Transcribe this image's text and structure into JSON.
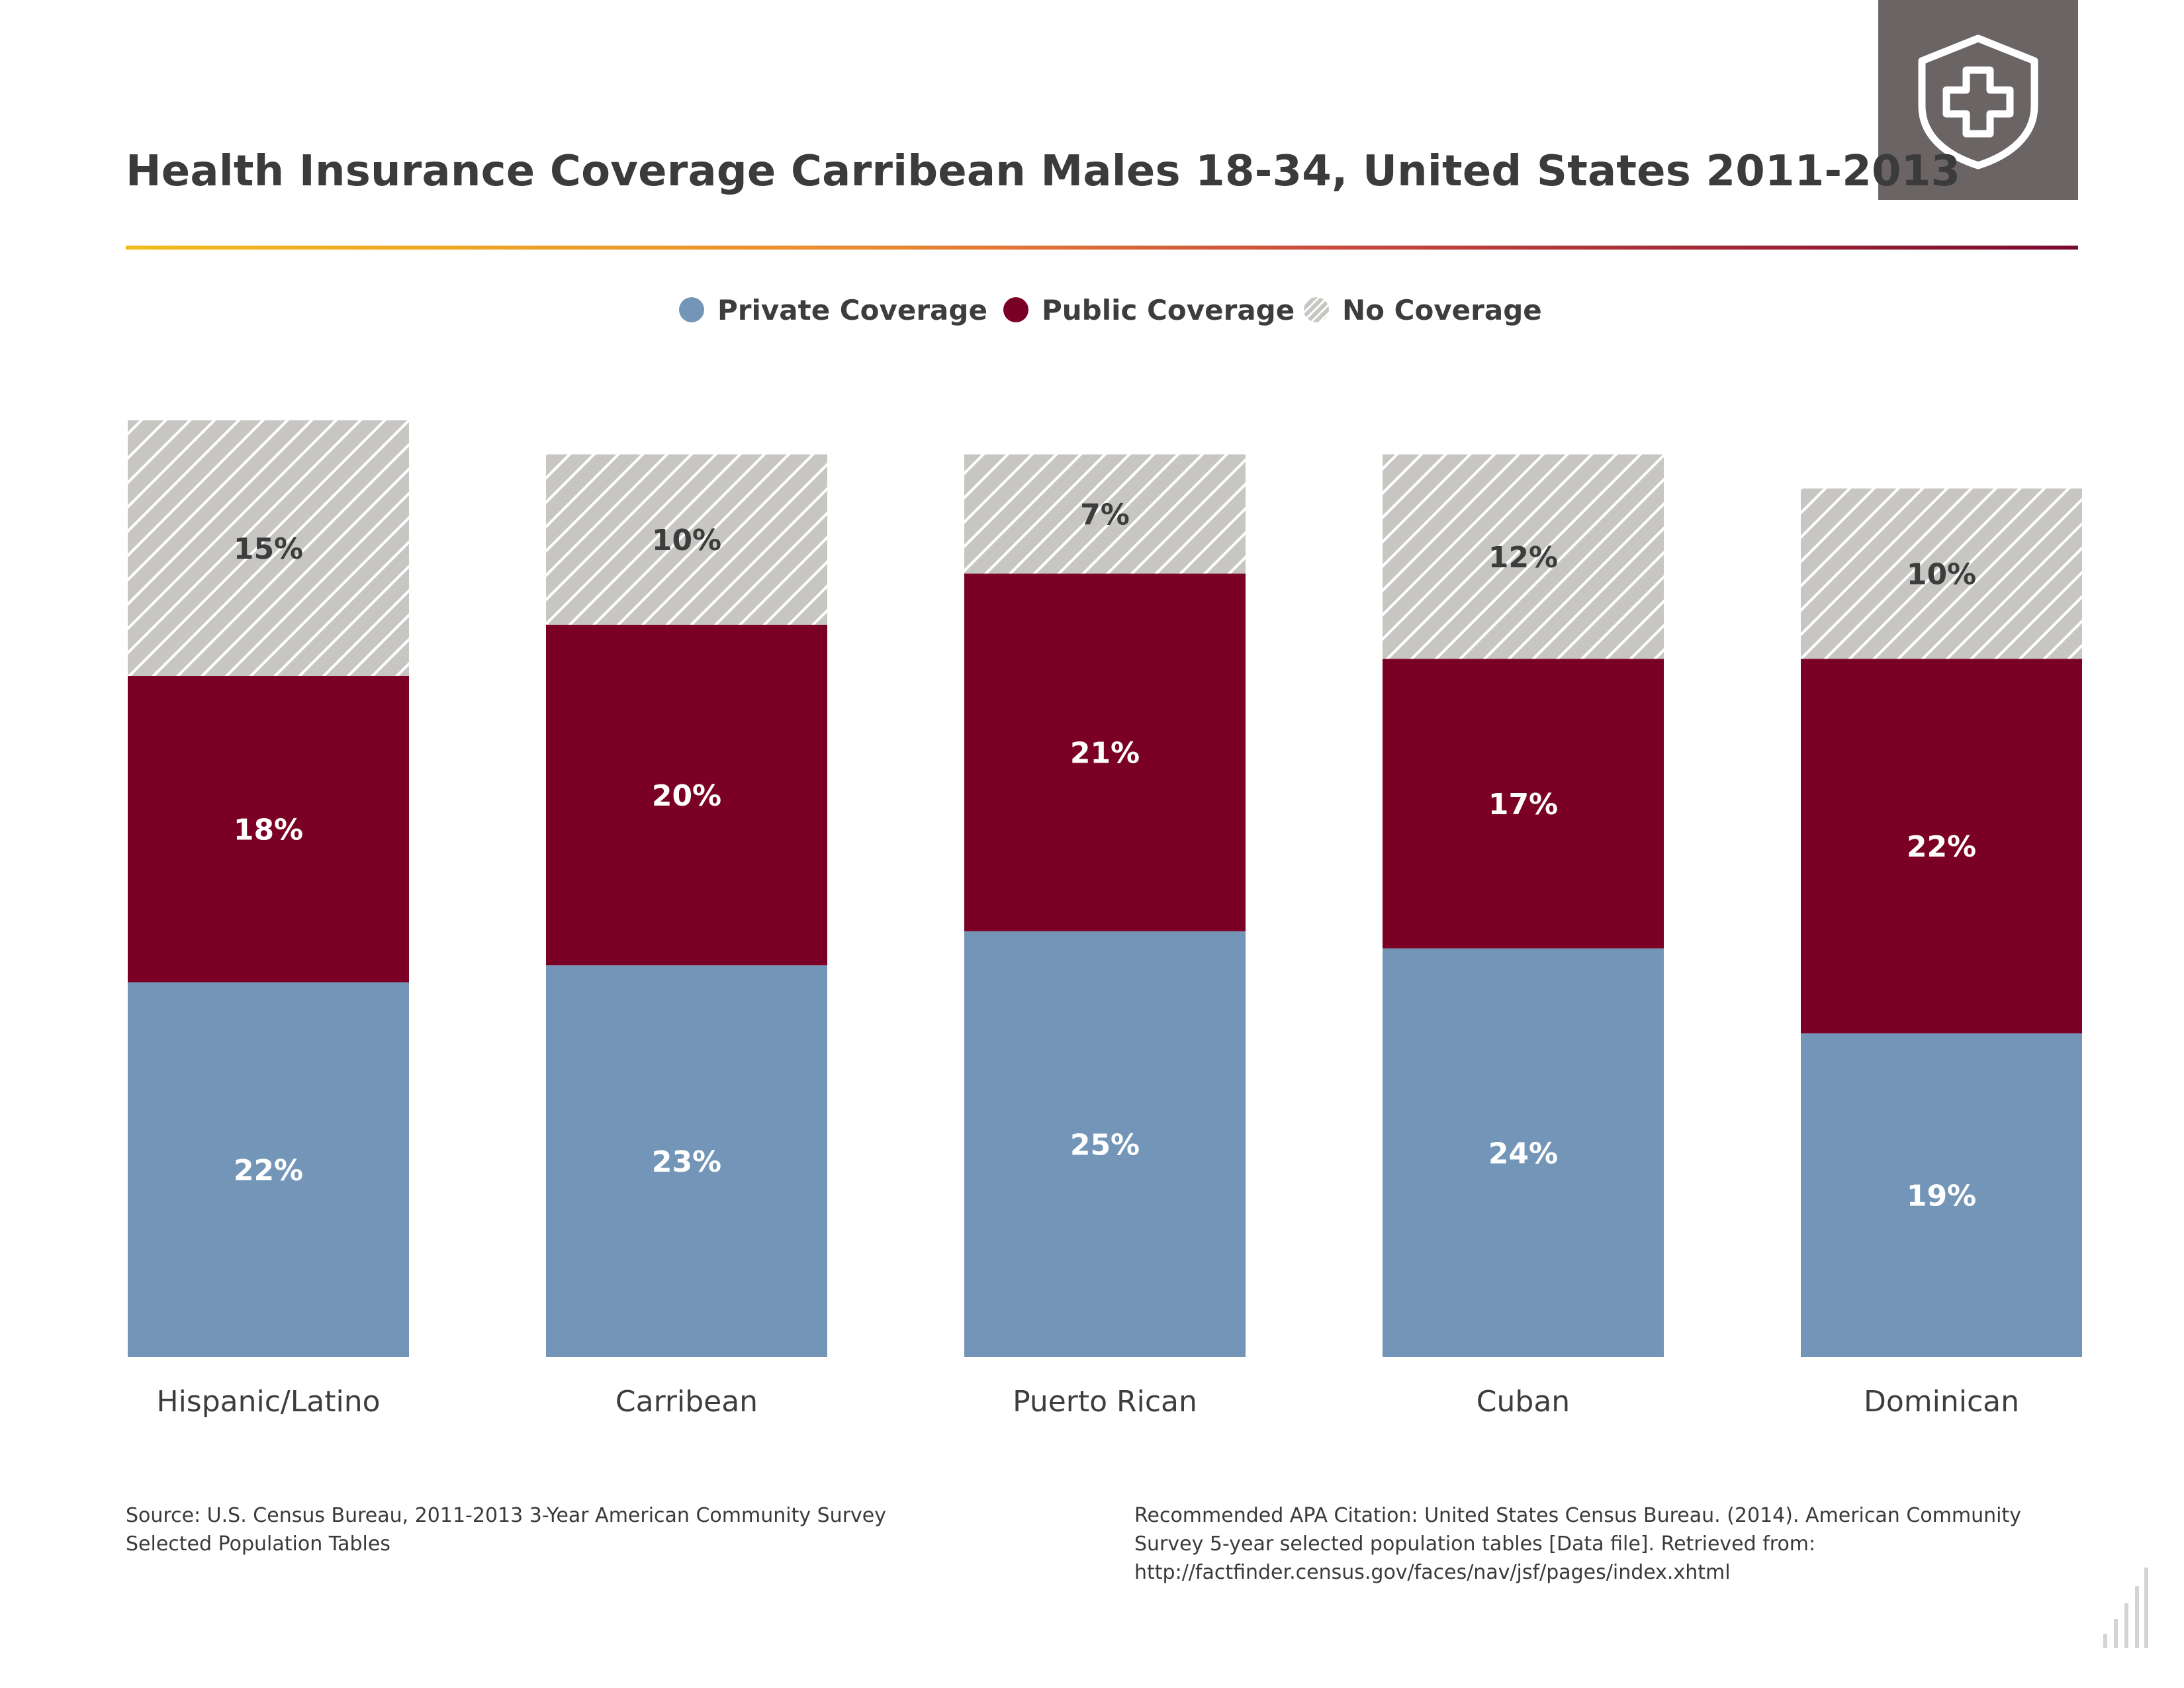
{
  "header": {
    "title": "Health Insurance Coverage Carribean Males 18-34, United States 2011-2013",
    "badge_icon": "shield-plus-icon"
  },
  "colors": {
    "private": "#7396b8",
    "public": "#7b0026",
    "none": "#c8c6c3",
    "hatch": "#ffffff",
    "accent_gradient": [
      "#f0bc1c",
      "#ea8a32",
      "#c84a3e",
      "#7a0a2e"
    ],
    "badge": "#6a6564"
  },
  "legend": {
    "items": [
      {
        "key": "private",
        "label": "Private Coverage"
      },
      {
        "key": "public",
        "label": "Public Coverage"
      },
      {
        "key": "none",
        "label": "No Coverage"
      }
    ]
  },
  "chart_data": {
    "type": "bar",
    "stacked": true,
    "categories": [
      "Hispanic/Latino",
      "Carribean",
      "Puerto Rican",
      "Cuban",
      "Dominican"
    ],
    "series": [
      {
        "key": "private",
        "name": "Private Coverage",
        "values": [
          22,
          23,
          25,
          24,
          19
        ],
        "labels": [
          "22%",
          "23%",
          "25%",
          "24%",
          "19%"
        ]
      },
      {
        "key": "public",
        "name": "Public Coverage",
        "values": [
          18,
          20,
          21,
          17,
          22
        ],
        "labels": [
          "18%",
          "20%",
          "21%",
          "17%",
          "22%"
        ]
      },
      {
        "key": "none",
        "name": "No Coverage",
        "values": [
          15,
          10,
          7,
          12,
          10
        ],
        "labels": [
          "15%",
          "10%",
          "7%",
          "12%",
          "10%"
        ]
      }
    ],
    "legend_position": "top-center",
    "grid": false,
    "axes_visible": false
  },
  "footer": {
    "source": "Source: U.S. Census Bureau, 2011-2013 3-Year American Community Survey Selected Population Tables",
    "citation": "Recommended APA Citation: United States Census Bureau. (2014). American Community Survey 5-year selected population tables [Data file]. Retrieved from: http://factfinder.census.gov/faces/nav/jsf/pages/index.xhtml",
    "corner_icon": "bar-chart-logo-icon"
  }
}
